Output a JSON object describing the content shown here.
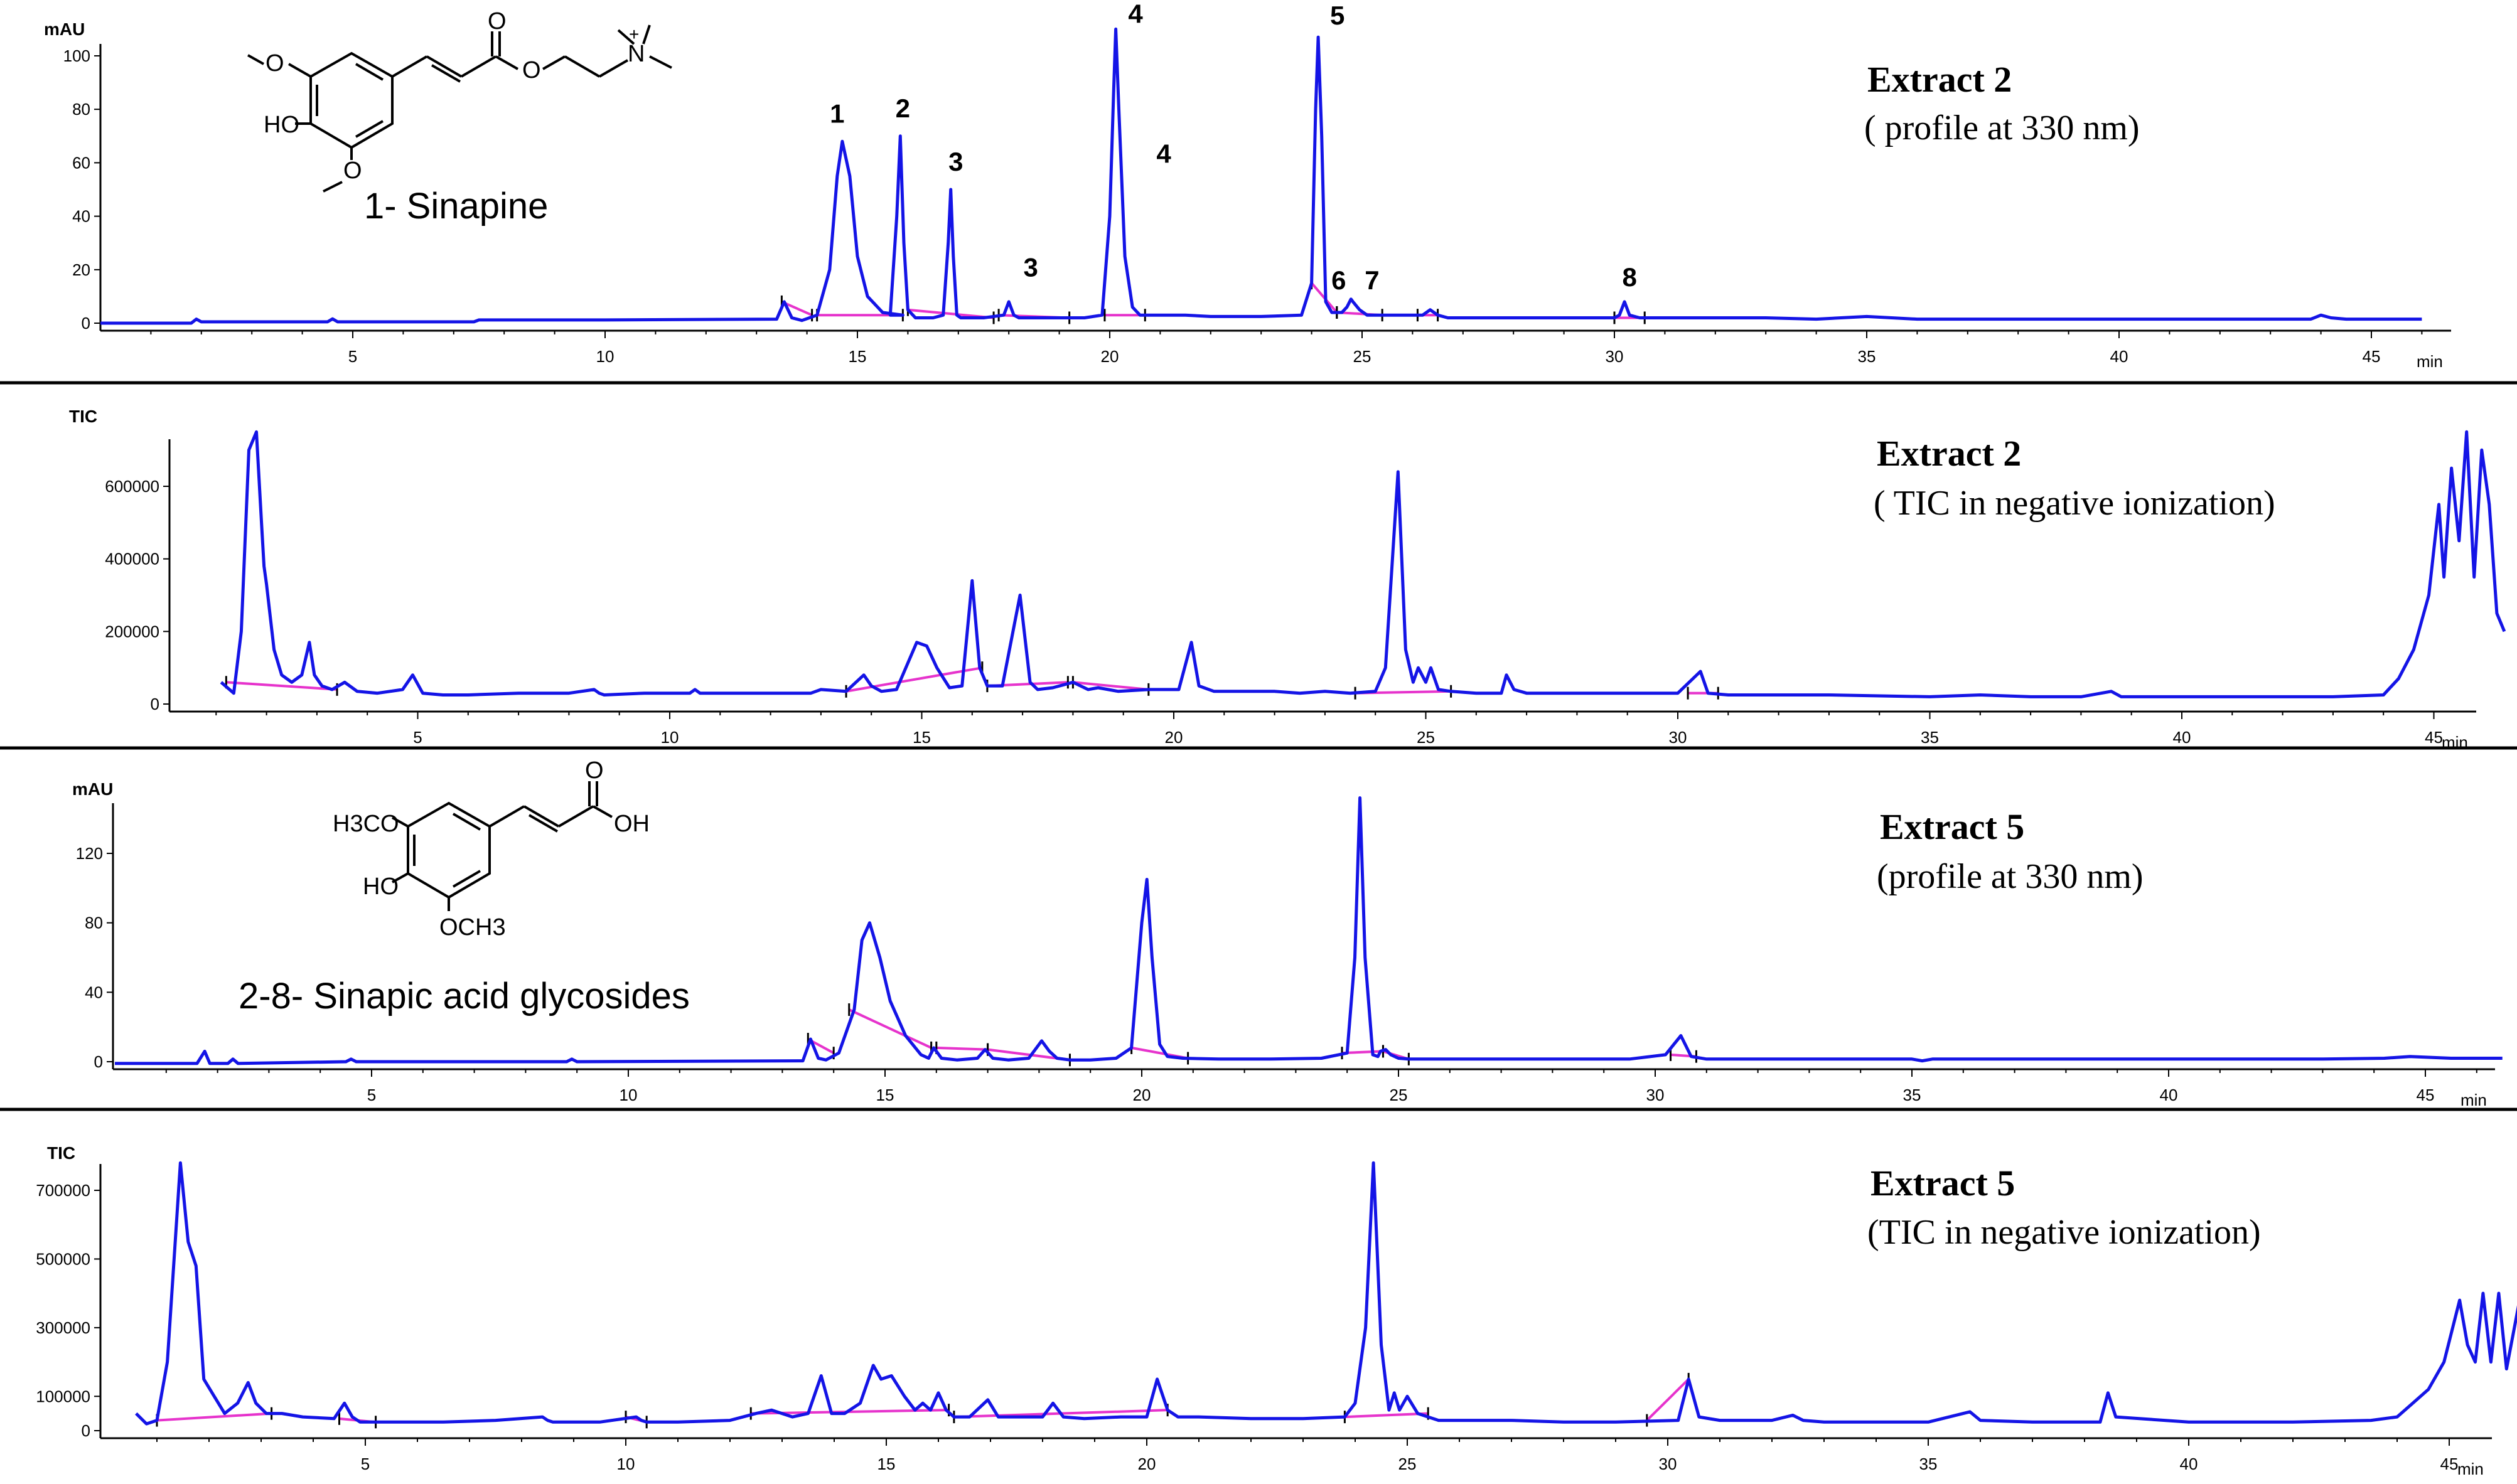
{
  "colors": {
    "trace": "#1414e6",
    "baseline": "#e633cc",
    "axis": "#000000"
  },
  "chart_data": [
    {
      "type": "line",
      "ylabel": "mAU",
      "xunit": "min",
      "xlim": [
        0,
        46
      ],
      "ylim": [
        -5,
        115
      ],
      "yticks": [
        "0",
        "20",
        "40",
        "60",
        "80",
        "100"
      ],
      "xticks": [
        "5",
        "10",
        "15",
        "20",
        "25",
        "30",
        "35",
        "40",
        "45"
      ],
      "title": "Extract 2",
      "subtitle": "( profile at 330 nm)",
      "series": [
        {
          "x": [
            0,
            1.8,
            1.9,
            2.0,
            4.5,
            4.6,
            4.7,
            7.4,
            7.5,
            10,
            13.4,
            13.55,
            13.7,
            13.9,
            14.2,
            14.45,
            14.6,
            14.7,
            14.85,
            15.0,
            15.2,
            15.5,
            15.9,
            15.65,
            15.78,
            15.85,
            15.92,
            16.0,
            16.15,
            16.5,
            16.7,
            16.8,
            16.85,
            16.9,
            16.97,
            17.05,
            17.2,
            17.5,
            17.9,
            18.0,
            18.1,
            18.2,
            18.35,
            18.6,
            19.0,
            19.5,
            19.85,
            20.0,
            20.08,
            20.12,
            20.18,
            20.3,
            20.45,
            20.6,
            21.5,
            22,
            23,
            23.8,
            24.0,
            24.08,
            24.13,
            24.2,
            24.28,
            24.4,
            24.6,
            24.7,
            24.78,
            24.82,
            24.95,
            25.1,
            25.6,
            26.2,
            26.35,
            26.5,
            26.7,
            27.5,
            29,
            30.0,
            30.1,
            30.2,
            30.3,
            30.5,
            31,
            33,
            34,
            35,
            36,
            37.5,
            39,
            42,
            43.8,
            44,
            44.2,
            44.5,
            45,
            46
          ],
          "y": [
            0,
            0,
            1.5,
            0.5,
            0.5,
            1.6,
            0.5,
            0.5,
            1.2,
            1.2,
            1.5,
            8,
            2,
            1,
            3,
            20,
            55,
            68,
            55,
            25,
            10,
            4,
            3,
            3,
            40,
            70,
            30,
            5,
            2,
            2,
            3,
            30,
            50,
            25,
            3,
            2,
            2,
            2,
            3,
            8,
            3,
            2,
            2,
            2,
            2,
            2,
            3,
            40,
            88,
            110,
            80,
            25,
            6,
            3,
            3,
            2.5,
            2.5,
            3,
            15,
            80,
            107,
            70,
            8,
            4,
            4,
            6,
            9,
            8,
            5,
            3,
            3,
            3,
            5,
            3,
            2,
            2,
            2,
            2,
            3,
            8,
            3,
            2,
            2,
            2,
            1.5,
            2.5,
            1.5,
            1.5,
            1.5,
            1.5,
            1.5,
            3,
            2,
            1.5,
            1.5,
            1.5
          ]
        }
      ],
      "annotations": [
        "1",
        "2",
        "3",
        "3",
        "4",
        "4",
        "5",
        "6",
        "7",
        "8"
      ],
      "compound": {
        "caption": "1- Sinapine",
        "atoms": [
          "O",
          "HO",
          "O",
          "O",
          "O",
          "N",
          "+"
        ]
      }
    },
    {
      "type": "line",
      "ylabel": "TIC",
      "xunit": "min",
      "xlim": [
        -0.5,
        46.5
      ],
      "ylim": [
        -10000,
        730000
      ],
      "yticks": [
        "0",
        "200000",
        "400000",
        "600000"
      ],
      "xticks": [
        "5",
        "10",
        "15",
        "20",
        "25",
        "30",
        "35",
        "40",
        "45"
      ],
      "title": "Extract 2",
      "subtitle": "( TIC in negative ionization)",
      "series": [
        {
          "x": [
            1.1,
            1.35,
            1.5,
            1.65,
            1.8,
            1.9,
            1.95,
            2.0,
            2.15,
            2.3,
            2.5,
            2.7,
            2.85,
            2.95,
            3.1,
            3.3,
            3.55,
            3.8,
            4.2,
            4.7,
            4.9,
            5.1,
            5.5,
            6,
            7,
            8,
            8.5,
            8.6,
            8.7,
            9.5,
            10.4,
            10.5,
            10.6,
            11,
            12,
            12.8,
            13,
            13.5,
            13.85,
            14.0,
            14.2,
            14.5,
            14.9,
            15.1,
            15.3,
            15.55,
            15.8,
            16.0,
            16.15,
            16.3,
            16.6,
            16.95,
            17.15,
            17.3,
            17.6,
            18.0,
            18.3,
            18.5,
            18.9,
            19.5,
            20.1,
            20.35,
            20.5,
            20.8,
            21.5,
            22,
            22.5,
            23,
            23.5,
            24.0,
            24.2,
            24.45,
            24.6,
            24.75,
            24.85,
            25.0,
            25.1,
            25.25,
            25.5,
            26,
            26.5,
            26.6,
            26.75,
            27,
            28,
            29,
            30,
            30.45,
            30.6,
            31,
            32,
            33,
            35,
            36,
            37,
            38,
            38.6,
            38.8,
            40,
            42,
            43,
            44,
            44.3,
            44.6,
            44.9,
            45.1,
            45.2,
            45.35,
            45.5,
            45.65,
            45.8,
            45.95,
            46.1,
            46.25,
            46.4
          ],
          "y": [
            60000,
            30000,
            200000,
            700000,
            750000,
            500000,
            380000,
            330000,
            150000,
            80000,
            60000,
            80000,
            170000,
            80000,
            50000,
            40000,
            60000,
            35000,
            30000,
            40000,
            80000,
            30000,
            25000,
            25000,
            30000,
            30000,
            40000,
            30000,
            25000,
            30000,
            30000,
            40000,
            30000,
            30000,
            30000,
            30000,
            40000,
            35000,
            80000,
            50000,
            35000,
            40000,
            170000,
            160000,
            100000,
            45000,
            50000,
            340000,
            100000,
            50000,
            50000,
            300000,
            60000,
            40000,
            45000,
            60000,
            40000,
            45000,
            35000,
            40000,
            40000,
            170000,
            50000,
            35000,
            35000,
            35000,
            30000,
            35000,
            30000,
            35000,
            100000,
            640000,
            150000,
            60000,
            100000,
            60000,
            100000,
            40000,
            35000,
            30000,
            30000,
            80000,
            40000,
            30000,
            30000,
            30000,
            30000,
            90000,
            30000,
            25000,
            25000,
            25000,
            20000,
            25000,
            20000,
            20000,
            35000,
            20000,
            20000,
            20000,
            20000,
            25000,
            70000,
            150000,
            300000,
            550000,
            350000,
            650000,
            450000,
            750000,
            350000,
            700000,
            550000,
            250000,
            200000
          ]
        }
      ],
      "annotations": []
    },
    {
      "type": "line",
      "ylabel": "mAU",
      "xunit": "min",
      "xlim": [
        0,
        46.5
      ],
      "ylim": [
        -8,
        152
      ],
      "yticks": [
        "0",
        "40",
        "80",
        "120"
      ],
      "xticks": [
        "5",
        "10",
        "15",
        "20",
        "25",
        "30",
        "35",
        "40",
        "45"
      ],
      "title": "Extract 5",
      "subtitle": "(profile at 330 nm)",
      "series": [
        {
          "x": [
            0,
            1.6,
            1.75,
            1.85,
            2.2,
            2.3,
            2.4,
            4.5,
            4.6,
            4.7,
            8.8,
            8.9,
            9,
            13.4,
            13.55,
            13.7,
            13.85,
            14.1,
            14.4,
            14.55,
            14.7,
            14.9,
            15.1,
            15.4,
            15.7,
            15.85,
            15.95,
            16.1,
            16.4,
            16.8,
            16.95,
            17.1,
            17.4,
            17.8,
            18.05,
            18.2,
            18.35,
            18.6,
            19,
            19.5,
            19.8,
            20.0,
            20.1,
            20.2,
            20.35,
            20.5,
            20.8,
            21.5,
            22.5,
            23.5,
            24.0,
            24.15,
            24.25,
            24.35,
            24.5,
            24.6,
            24.65,
            24.75,
            24.85,
            25.0,
            25.2,
            26,
            28,
            29.5,
            30.2,
            30.5,
            30.7,
            31,
            33,
            35,
            35.2,
            35.4,
            38,
            41,
            43,
            44.2,
            44.7,
            45.5,
            46.5
          ],
          "y": [
            -1,
            -1,
            6,
            -1,
            -1,
            1.5,
            -1,
            0,
            1.5,
            0,
            0,
            1.5,
            0,
            0.5,
            13,
            2,
            1,
            5,
            30,
            70,
            80,
            60,
            35,
            15,
            4,
            2,
            8,
            2,
            1,
            2,
            7,
            2,
            1,
            2,
            12,
            6,
            2,
            1,
            1,
            2,
            8,
            80,
            105,
            60,
            10,
            3,
            2,
            1.5,
            1.5,
            2,
            5,
            60,
            152,
            60,
            4,
            3,
            6,
            7,
            4,
            2,
            1.5,
            1.5,
            1.5,
            1.5,
            4,
            15,
            3,
            1.5,
            1.5,
            1.5,
            0.5,
            1.5,
            1.5,
            1.5,
            1.5,
            2,
            3,
            2,
            2
          ]
        }
      ],
      "annotations": [],
      "compound": {
        "caption": "2-8- Sinapic acid glycosides",
        "atoms": [
          "H3CO",
          "HO",
          "OCH3",
          "O",
          "OH"
        ]
      }
    },
    {
      "type": "line",
      "ylabel": "TIC",
      "xunit": "min",
      "xlim": [
        -0.5,
        46.5
      ],
      "ylim": [
        -20000,
        800000
      ],
      "yticks": [
        "0",
        "100000",
        "300000",
        "500000",
        "700000"
      ],
      "xticks": [
        "5",
        "10",
        "15",
        "20",
        "25",
        "30",
        "35",
        "40",
        "45"
      ],
      "title": "Extract 5",
      "subtitle": "(TIC in negative ionization)",
      "series": [
        {
          "x": [
            0.6,
            0.8,
            1.0,
            1.2,
            1.45,
            1.6,
            1.75,
            1.9,
            2.1,
            2.3,
            2.55,
            2.75,
            2.9,
            3.1,
            3.4,
            3.8,
            4.4,
            4.6,
            4.75,
            4.9,
            5.5,
            6.5,
            7.5,
            8.4,
            8.5,
            8.6,
            9.5,
            10.2,
            10.3,
            10.4,
            11,
            12,
            12.5,
            12.8,
            13.2,
            13.5,
            13.75,
            13.95,
            14.2,
            14.5,
            14.75,
            14.9,
            15.1,
            15.35,
            15.55,
            15.7,
            15.85,
            16.0,
            16.15,
            16.3,
            16.6,
            16.95,
            17.15,
            17.4,
            18.0,
            18.2,
            18.4,
            18.8,
            19.5,
            20.0,
            20.2,
            20.4,
            20.6,
            21,
            22,
            23,
            23.8,
            24.0,
            24.2,
            24.35,
            24.5,
            24.65,
            24.75,
            24.85,
            25.0,
            25.2,
            25.6,
            26.2,
            27,
            28,
            29,
            30.2,
            30.4,
            30.6,
            31,
            32,
            32.4,
            32.6,
            33,
            34,
            35,
            35.8,
            36,
            37,
            38.3,
            38.45,
            38.6,
            40,
            42,
            43.5,
            44,
            44.3,
            44.6,
            44.9,
            45.2,
            45.35,
            45.5,
            45.65,
            45.8,
            45.95,
            46.1,
            46.25,
            46.4
          ],
          "y": [
            50000,
            20000,
            30000,
            200000,
            780000,
            550000,
            480000,
            150000,
            100000,
            50000,
            80000,
            140000,
            80000,
            50000,
            50000,
            40000,
            35000,
            80000,
            40000,
            25000,
            25000,
            25000,
            30000,
            40000,
            30000,
            25000,
            25000,
            40000,
            30000,
            25000,
            25000,
            30000,
            50000,
            60000,
            40000,
            50000,
            160000,
            50000,
            50000,
            80000,
            190000,
            150000,
            160000,
            100000,
            60000,
            80000,
            60000,
            110000,
            60000,
            40000,
            40000,
            90000,
            40000,
            40000,
            40000,
            80000,
            40000,
            35000,
            40000,
            40000,
            150000,
            60000,
            40000,
            40000,
            35000,
            35000,
            40000,
            80000,
            300000,
            780000,
            250000,
            60000,
            110000,
            60000,
            100000,
            50000,
            30000,
            30000,
            30000,
            25000,
            25000,
            30000,
            150000,
            40000,
            30000,
            30000,
            45000,
            30000,
            25000,
            25000,
            25000,
            55000,
            30000,
            25000,
            25000,
            110000,
            40000,
            25000,
            25000,
            30000,
            40000,
            80000,
            120000,
            200000,
            380000,
            250000,
            200000,
            400000,
            200000,
            400000,
            180000,
            300000,
            420000
          ]
        }
      ],
      "annotations": []
    }
  ]
}
